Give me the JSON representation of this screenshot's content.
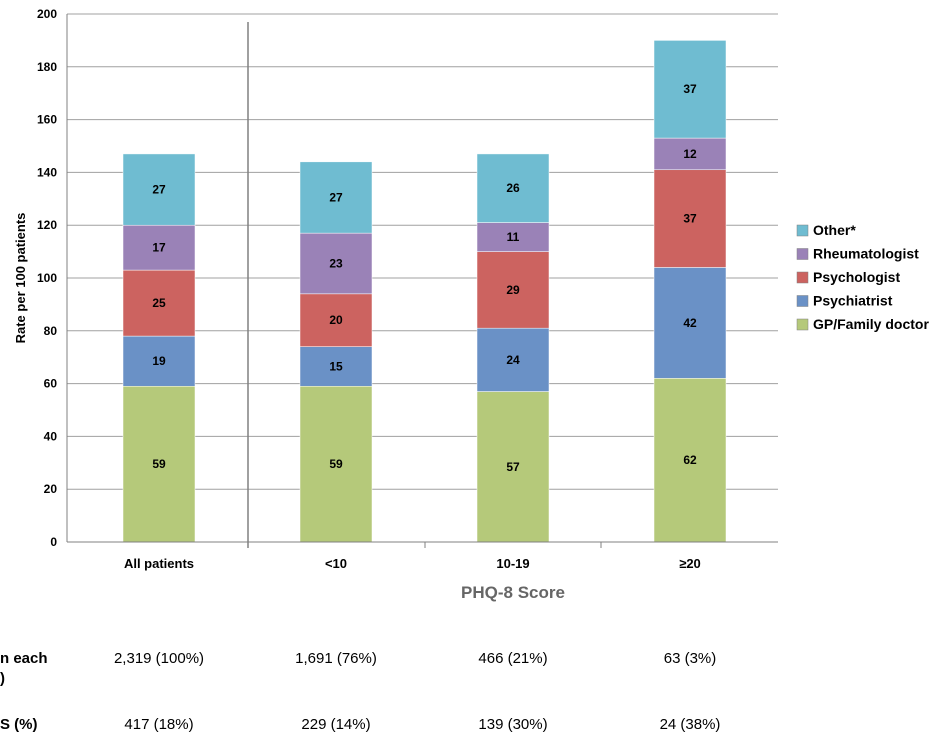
{
  "chart_data": {
    "type": "bar",
    "stacked": true,
    "xlabel": "PHQ-8 Score",
    "ylabel": "Rate per 100 patients",
    "ylim": [
      0,
      200
    ],
    "yticks": [
      0,
      20,
      40,
      60,
      80,
      100,
      120,
      140,
      160,
      180,
      200
    ],
    "grid": true,
    "legend_position": "right",
    "categories": [
      "All patients",
      "<10",
      "10-19",
      "≥20"
    ],
    "series": [
      {
        "name": "GP/Family doctor",
        "color": "#b5c97a",
        "values": [
          59,
          59,
          57,
          62
        ]
      },
      {
        "name": "Psychiatrist",
        "color": "#6a91c6",
        "values": [
          19,
          15,
          24,
          42
        ]
      },
      {
        "name": "Psychologist",
        "color": "#cc6360",
        "values": [
          25,
          20,
          29,
          37
        ]
      },
      {
        "name": "Rheumatologist",
        "color": "#9a82b7",
        "values": [
          17,
          23,
          11,
          12
        ]
      },
      {
        "name": "Other*",
        "color": "#6fbcd1",
        "values": [
          27,
          27,
          26,
          37
        ]
      }
    ],
    "legend_order": [
      "Other*",
      "Rheumatologist",
      "Psychologist",
      "Psychiatrist",
      "GP/Family doctor"
    ]
  },
  "table": {
    "rows": [
      {
        "label_lines": [
          "n each",
          ")"
        ],
        "values": [
          "2,319 (100%)",
          "1,691 (76%)",
          "466 (21%)",
          "63 (3%)"
        ]
      },
      {
        "label_lines": [
          "S (%)"
        ],
        "values": [
          "417 (18%)",
          "229 (14%)",
          "139 (30%)",
          "24 (38%)"
        ]
      }
    ]
  }
}
